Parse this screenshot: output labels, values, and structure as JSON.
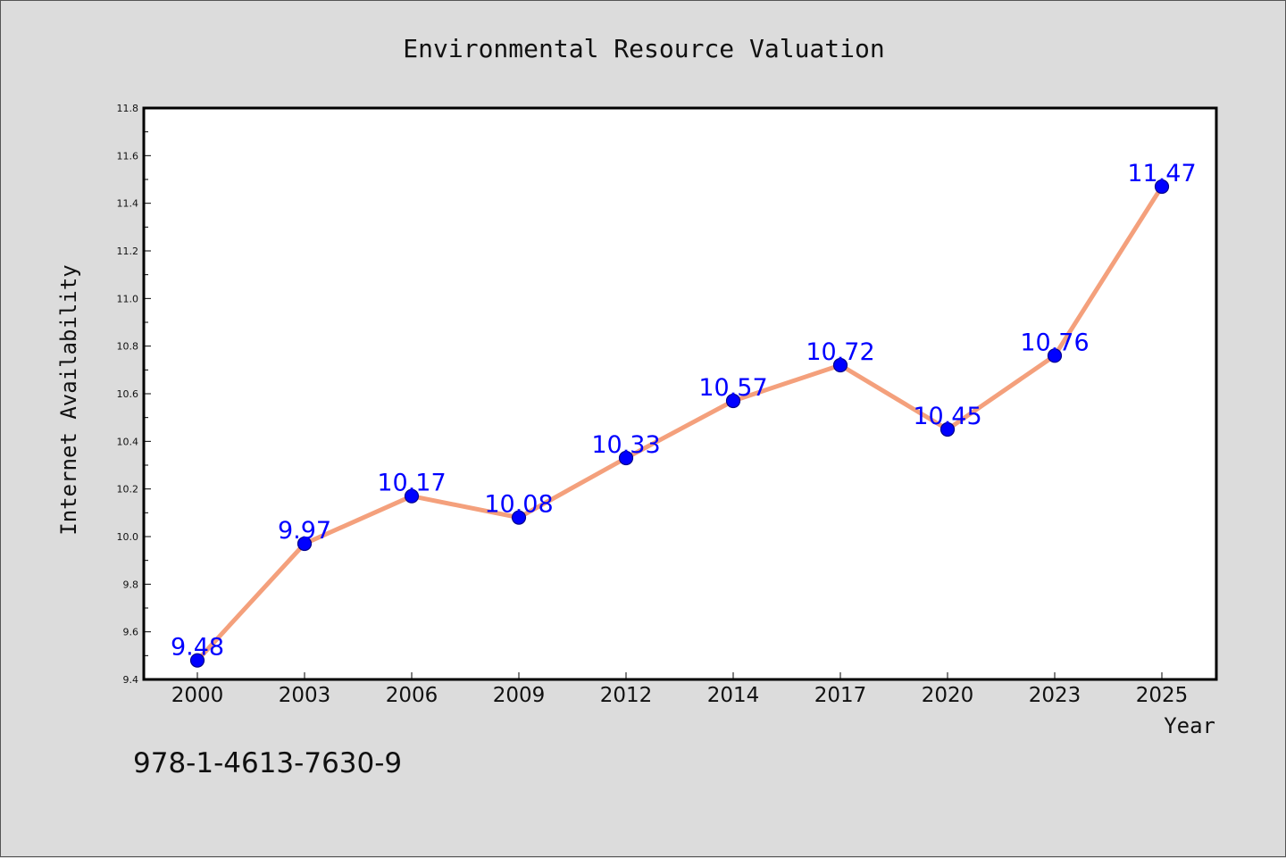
{
  "chart_data": {
    "type": "line",
    "title": "Environmental Resource Valuation",
    "xlabel": "Year",
    "ylabel": "Internet Availability",
    "categories": [
      "2000",
      "2003",
      "2006",
      "2009",
      "2012",
      "2014",
      "2017",
      "2020",
      "2023",
      "2025"
    ],
    "series": [
      {
        "values": [
          9.48,
          9.97,
          10.17,
          10.08,
          10.33,
          10.57,
          10.72,
          10.45,
          10.76,
          11.47
        ],
        "data_labels": [
          "9.48",
          "9.97",
          "10.17",
          "10.08",
          "10.33",
          "10.57",
          "10.72",
          "10.45",
          "10.76",
          "11.47"
        ]
      }
    ],
    "ylim": [
      9.4,
      11.8
    ],
    "y_ticks": [
      "9.4",
      "9.6",
      "9.8",
      "10.0",
      "10.2",
      "10.4",
      "10.6",
      "10.8",
      "11.0",
      "11.2",
      "11.4",
      "11.6",
      "11.8"
    ],
    "grid": false,
    "legend": "none",
    "colors": {
      "line": "#f4a07c",
      "marker": "#0000ff",
      "marker_edge": "#00008b",
      "data_label": "#0000ff",
      "plot_background": "#ffffff",
      "figure_background": "#dcdcdc"
    }
  },
  "footnote": "978-1-4613-7630-9"
}
